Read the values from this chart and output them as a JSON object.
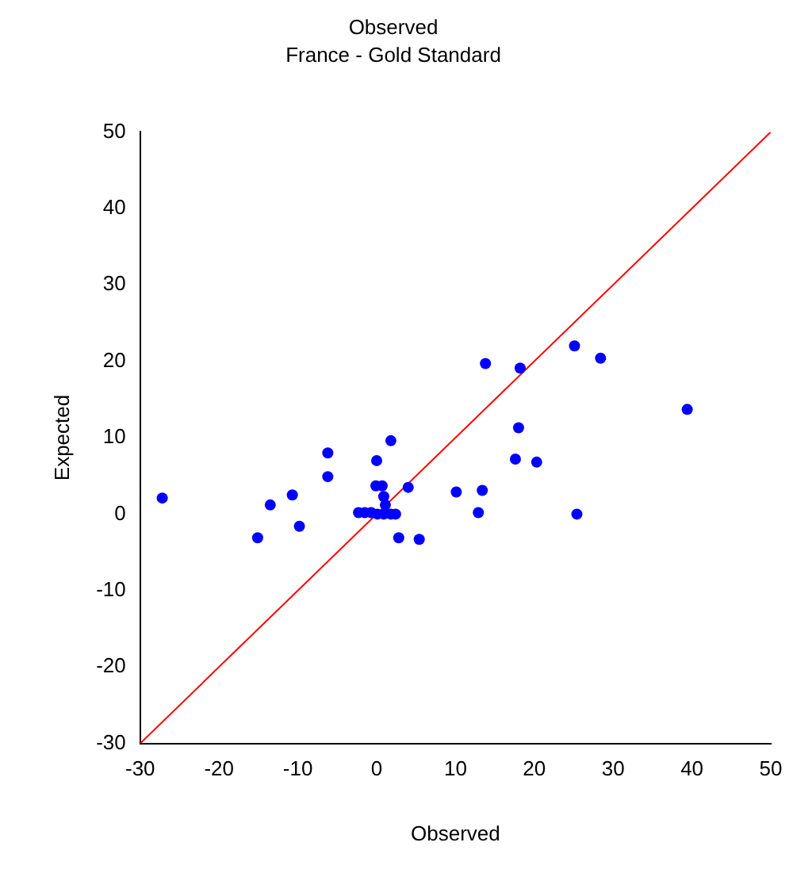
{
  "chart_data": {
    "type": "scatter",
    "title": "Observed",
    "subtitle": "France - Gold Standard",
    "xlabel": "Observed",
    "ylabel": "Expected",
    "xlim": [
      -30,
      50
    ],
    "ylim": [
      -30,
      50
    ],
    "xticks": [
      -30,
      -20,
      -10,
      0,
      10,
      20,
      30,
      40,
      50
    ],
    "yticks": [
      -30,
      -20,
      -10,
      0,
      10,
      20,
      30,
      40,
      50
    ],
    "grid": false,
    "legend": false,
    "marker": "circle",
    "series": [
      {
        "color": "#0000ff",
        "x": [
          -27.2,
          -15.1,
          -13.5,
          -10.7,
          -9.8,
          -6.2,
          -6.2,
          0,
          1.8,
          -0.1,
          0.7,
          0.9,
          1.1,
          -2.3,
          -1.5,
          -0.7,
          0.1,
          0.9,
          1.8,
          2.4,
          2.8,
          5.4,
          4.0,
          10.1,
          13.8,
          18.2,
          25.1,
          28.4,
          39.4,
          18.0,
          17.6,
          20.3,
          13.4,
          12.9,
          25.4
        ],
        "values": [
          2.1,
          -3.1,
          1.2,
          2.5,
          -1.6,
          8.0,
          4.9,
          7.0,
          9.6,
          3.7,
          3.7,
          2.3,
          1.2,
          0.2,
          0.2,
          0.2,
          0,
          0,
          0,
          0,
          -3.1,
          -3.3,
          3.5,
          2.9,
          19.7,
          19.1,
          22.0,
          20.4,
          13.7,
          11.3,
          7.2,
          6.8,
          3.1,
          0.2,
          0
        ]
      },
      {
        "type": "line",
        "color": "#ff0000",
        "x": [
          -30,
          50
        ],
        "values": [
          -30,
          50
        ],
        "marker": "none"
      }
    ]
  }
}
